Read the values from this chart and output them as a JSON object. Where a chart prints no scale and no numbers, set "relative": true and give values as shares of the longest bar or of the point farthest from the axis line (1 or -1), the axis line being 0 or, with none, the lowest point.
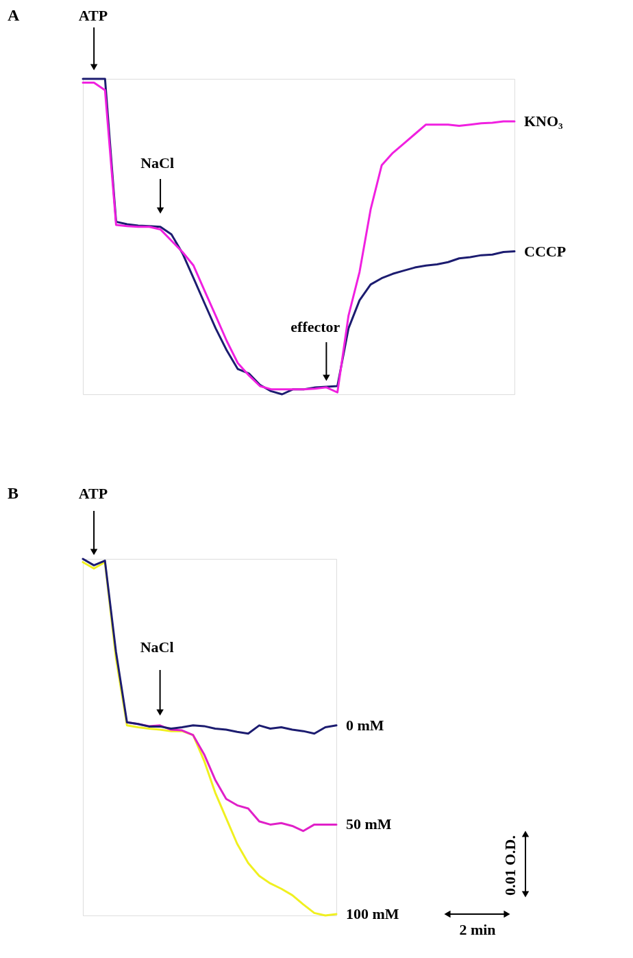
{
  "chart_data": [
    {
      "type": "line",
      "title": "A",
      "relative": true,
      "grid": false,
      "legend": false,
      "tick_labels": false,
      "marker": "none",
      "line_style": "solid",
      "categories": [
        null,
        null,
        null,
        null,
        null,
        null,
        null,
        null,
        null,
        null,
        null,
        null,
        null,
        null,
        null,
        null,
        null,
        null,
        null,
        null,
        null,
        null,
        null,
        null,
        null,
        null,
        null,
        null,
        null,
        null,
        null,
        null,
        null,
        null,
        null,
        null,
        null,
        null,
        null,
        null
      ],
      "series": [
        {
          "name": "KNO₃",
          "color": "#f020e0",
          "values": [
            0.988,
            0.988,
            0.964,
            0.537,
            0.533,
            0.531,
            0.531,
            0.523,
            0.487,
            0.451,
            0.408,
            0.328,
            0.249,
            0.169,
            0.099,
            0.06,
            0.026,
            0.016,
            0.016,
            0.016,
            0.016,
            0.018,
            0.022,
            0.006,
            0.249,
            0.388,
            0.586,
            0.726,
            0.765,
            0.795,
            0.825,
            0.855,
            0.855,
            0.855,
            0.851,
            0.855,
            0.859,
            0.861,
            0.865,
            0.865
          ]
        },
        {
          "name": "CCCP",
          "color": "#1c1c70",
          "values": [
            1.0,
            1.0,
            1.0,
            0.547,
            0.539,
            0.535,
            0.533,
            0.531,
            0.507,
            0.447,
            0.368,
            0.288,
            0.209,
            0.139,
            0.08,
            0.066,
            0.03,
            0.01,
            0.0,
            0.016,
            0.016,
            0.022,
            0.024,
            0.026,
            0.209,
            0.298,
            0.348,
            0.368,
            0.382,
            0.392,
            0.402,
            0.408,
            0.412,
            0.419,
            0.431,
            0.435,
            0.441,
            0.443,
            0.451,
            0.453
          ]
        }
      ],
      "annotations": [
        "ATP",
        "NaCl",
        "effector"
      ]
    },
    {
      "type": "line",
      "title": "B",
      "relative": true,
      "grid": false,
      "legend": false,
      "tick_labels": false,
      "marker": "none",
      "line_style": "solid",
      "categories": [
        null,
        null,
        null,
        null,
        null,
        null,
        null,
        null,
        null,
        null,
        null,
        null,
        null,
        null,
        null,
        null,
        null,
        null,
        null,
        null,
        null,
        null,
        null,
        null
      ],
      "series": [
        {
          "name": "0 mM",
          "color": "#1c1c70",
          "values": [
            1.0,
            0.982,
            0.995,
            0.74,
            0.542,
            0.537,
            0.53,
            0.53,
            0.524,
            0.528,
            0.533,
            0.531,
            0.524,
            0.521,
            0.515,
            0.51,
            0.533,
            0.524,
            0.528,
            0.521,
            0.517,
            0.51,
            0.528,
            0.533
          ]
        },
        {
          "name": "50 mM",
          "color": "#e020c8",
          "values": [
            null,
            null,
            null,
            null,
            0.542,
            0.537,
            0.531,
            0.533,
            0.521,
            0.519,
            0.506,
            0.452,
            0.381,
            0.327,
            0.309,
            0.3,
            0.264,
            0.255,
            0.259,
            0.251,
            0.237,
            0.255,
            0.255,
            0.255
          ]
        },
        {
          "name": "100 mM",
          "color": "#f0f020",
          "values": [
            0.991,
            0.973,
            0.991,
            0.722,
            0.533,
            0.528,
            0.524,
            0.521,
            0.517,
            0.517,
            0.506,
            0.434,
            0.345,
            0.273,
            0.201,
            0.147,
            0.111,
            0.09,
            0.075,
            0.057,
            0.031,
            0.007,
            0.0,
            0.004
          ]
        }
      ],
      "annotations": [
        "ATP",
        "NaCl",
        "0.01 O.D.",
        "2 min"
      ]
    }
  ]
}
